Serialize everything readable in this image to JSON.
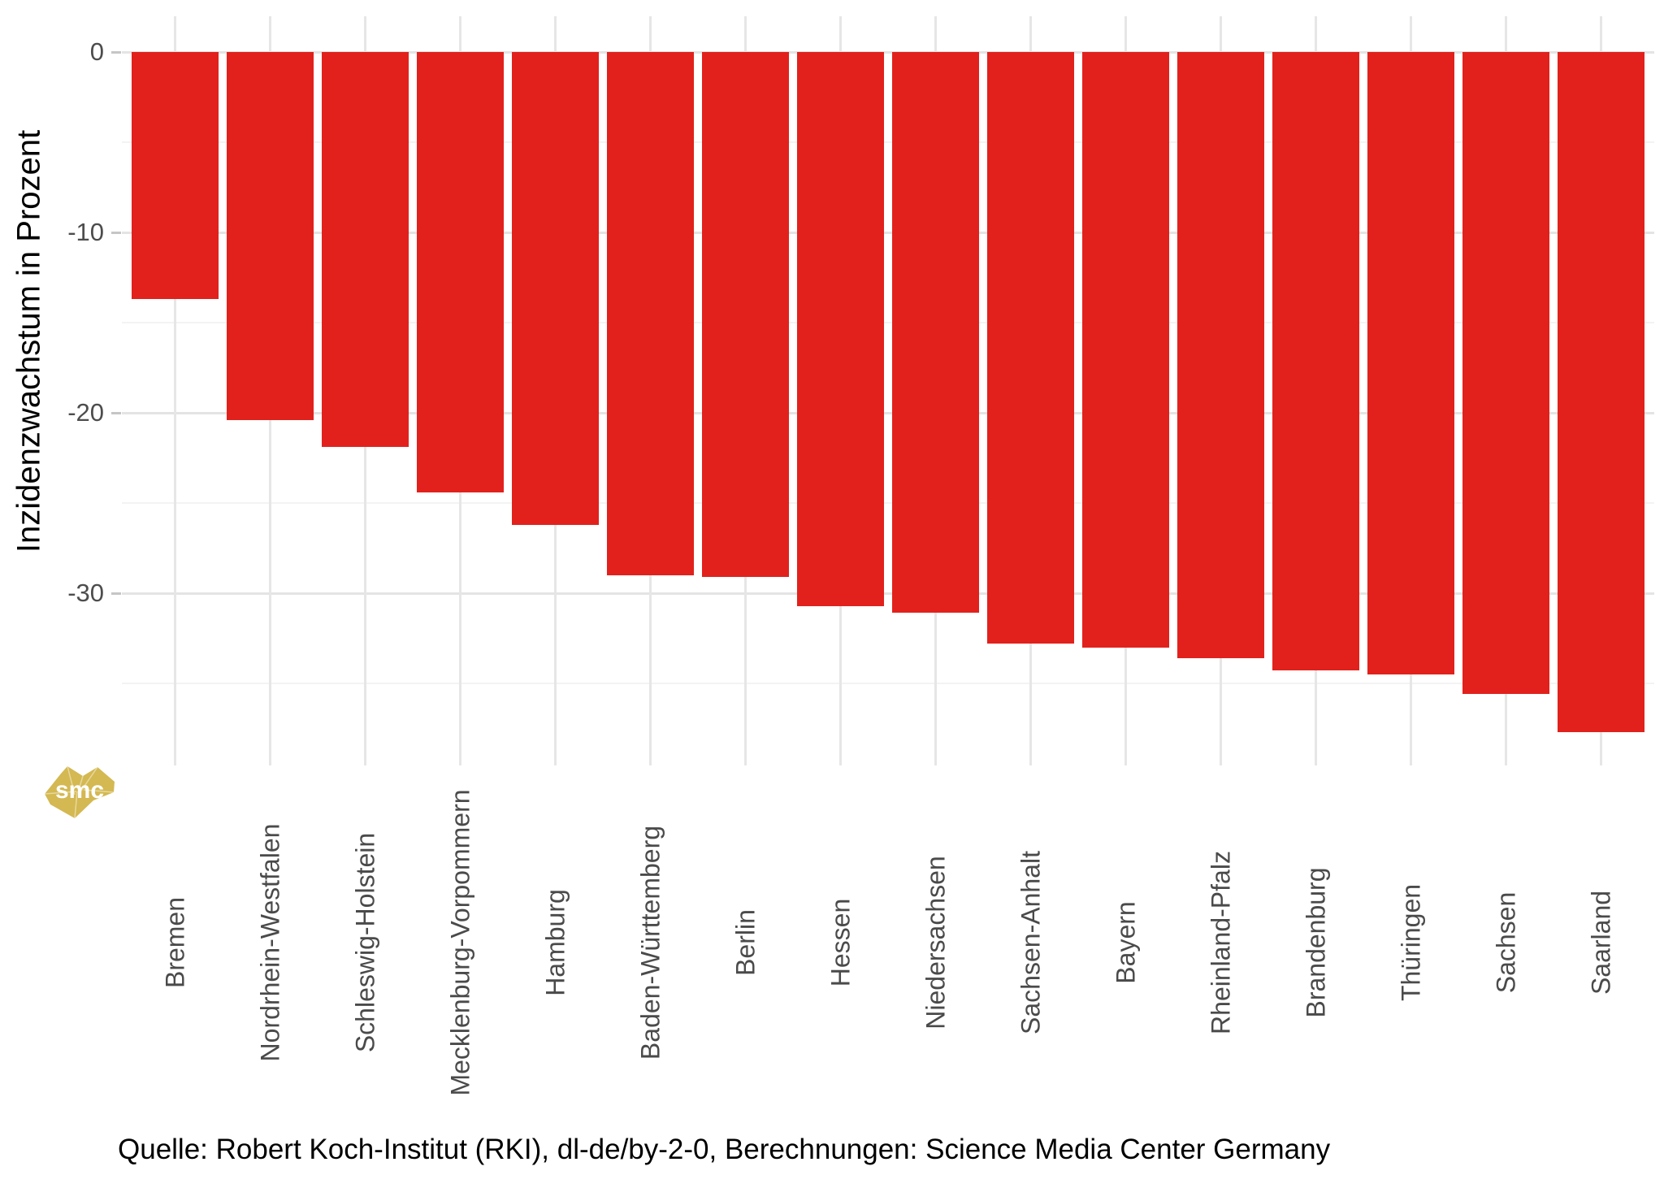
{
  "chart_data": {
    "type": "bar",
    "title": "",
    "xlabel": "",
    "ylabel": "Inzidenzwachstum in Prozent",
    "categories": [
      "Bremen",
      "Nordrhein-Westfalen",
      "Schleswig-Holstein",
      "Mecklenburg-Vorpommern",
      "Hamburg",
      "Baden-Württemberg",
      "Berlin",
      "Hessen",
      "Niedersachsen",
      "Sachsen-Anhalt",
      "Bayern",
      "Rheinland-Pfalz",
      "Brandenburg",
      "Thüringen",
      "Sachsen",
      "Saarland"
    ],
    "values": [
      -13.7,
      -20.4,
      -21.9,
      -24.4,
      -26.2,
      -29.0,
      -29.1,
      -30.7,
      -31.1,
      -32.8,
      -33.0,
      -33.6,
      -34.3,
      -34.5,
      -35.6,
      -37.7
    ],
    "ylim": [
      -39.6,
      2
    ],
    "yticks": [
      0,
      -10,
      -20,
      -30
    ],
    "yticks_minor": [
      -5,
      -15,
      -25,
      -35
    ],
    "grid": "major and minor horizontal, vertical at bar centers",
    "legend": "none",
    "bar_color": "#e2211c"
  },
  "caption": "Quelle: Robert Koch-Institut (RKI), dl-de/by-2-0, Berechnungen: Science Media Center Germany",
  "logo": {
    "text": "smc",
    "color": "#d4b851"
  },
  "colors": {
    "background": "#ffffff",
    "grid_major": "#e4e4e4",
    "grid_minor": "#f3f3f3",
    "axis_text": "#4d4d4d",
    "title_text": "#000000"
  }
}
